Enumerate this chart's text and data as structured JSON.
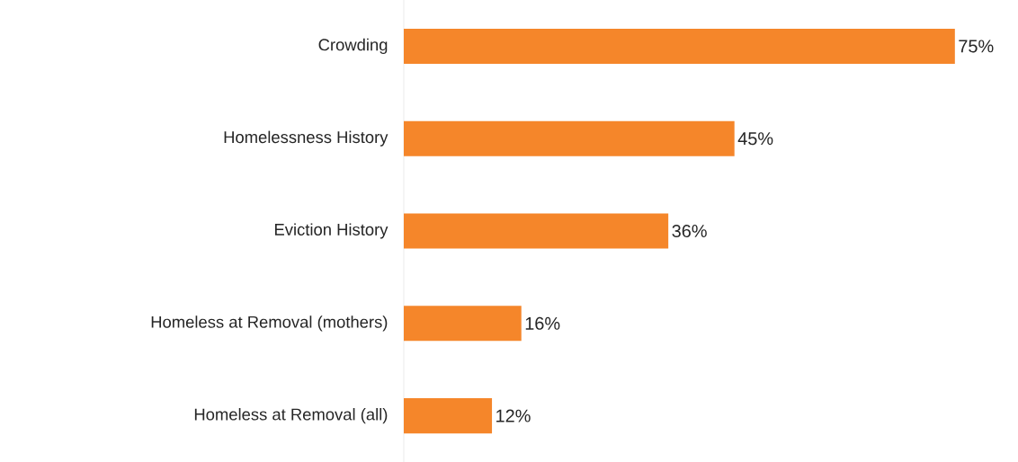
{
  "chart_data": {
    "type": "bar",
    "orientation": "horizontal",
    "categories": [
      "Crowding",
      "Homelessness History",
      "Eviction History",
      "Homeless at Removal (mothers)",
      "Homeless at Removal (all)"
    ],
    "values": [
      75,
      45,
      36,
      16,
      12
    ],
    "value_labels": [
      "75%",
      "45%",
      "36%",
      "16%",
      "12%"
    ],
    "color": "#f5862a"
  }
}
